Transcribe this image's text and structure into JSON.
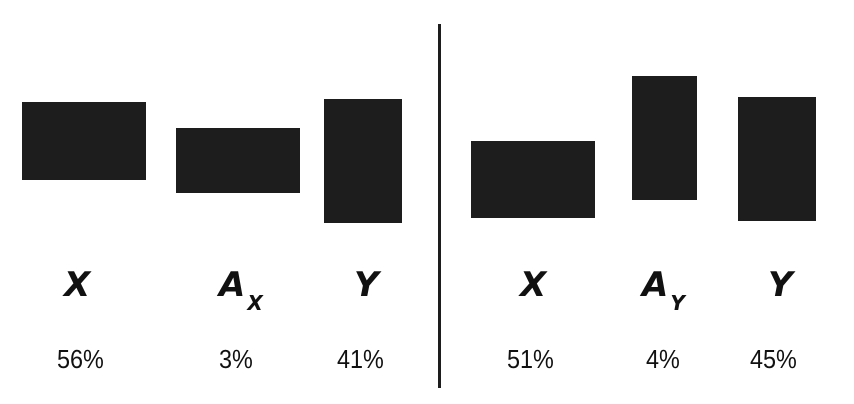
{
  "colors": {
    "block": "#1d1d1d",
    "text": "#111111",
    "background": "#ffffff"
  },
  "panels": [
    {
      "items": [
        {
          "label": "X",
          "subscript": "",
          "percent": "56%"
        },
        {
          "label": "A",
          "subscript": "X",
          "percent": "3%"
        },
        {
          "label": "Y",
          "subscript": "",
          "percent": "41%"
        }
      ]
    },
    {
      "items": [
        {
          "label": "X",
          "subscript": "",
          "percent": "51%"
        },
        {
          "label": "A",
          "subscript": "Y",
          "percent": "4%"
        },
        {
          "label": "Y",
          "subscript": "",
          "percent": "45%"
        }
      ]
    }
  ]
}
